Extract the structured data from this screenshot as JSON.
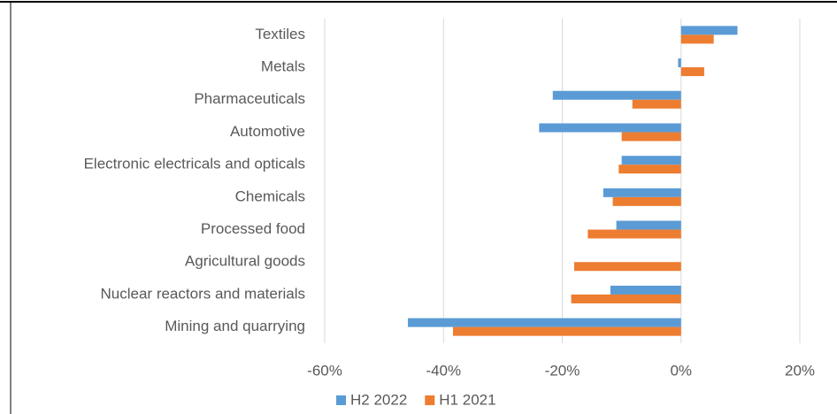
{
  "chart_data": {
    "type": "barh",
    "categories": [
      "Textiles",
      "Metals",
      "Pharmaceuticals",
      "Automotive",
      "Electronic electricals and opticals",
      "Chemicals",
      "Processed food",
      "Agricultural goods",
      "Nuclear reactors and materials",
      "Mining and quarrying"
    ],
    "series": [
      {
        "name": "H2 2022",
        "color": "#5b9bd5",
        "values": [
          9.5,
          -0.5,
          -21.6,
          -23.9,
          -10,
          -13.1,
          -10.9,
          0,
          -11.9,
          -46
        ]
      },
      {
        "name": "H1 2021",
        "color": "#ed7d31",
        "values": [
          5.5,
          3.9,
          -8.2,
          -10,
          -10.5,
          -11.5,
          -15.7,
          -18,
          -18.5,
          -38.4
        ]
      }
    ],
    "xlim": [
      -60,
      20
    ],
    "xticks": [
      {
        "value": -60,
        "label": "-60%"
      },
      {
        "value": -40,
        "label": "-40%"
      },
      {
        "value": -20,
        "label": "-20%"
      },
      {
        "value": 0,
        "label": "0%"
      },
      {
        "value": 20,
        "label": "20%"
      }
    ],
    "grid": true,
    "legend": "bottom"
  }
}
